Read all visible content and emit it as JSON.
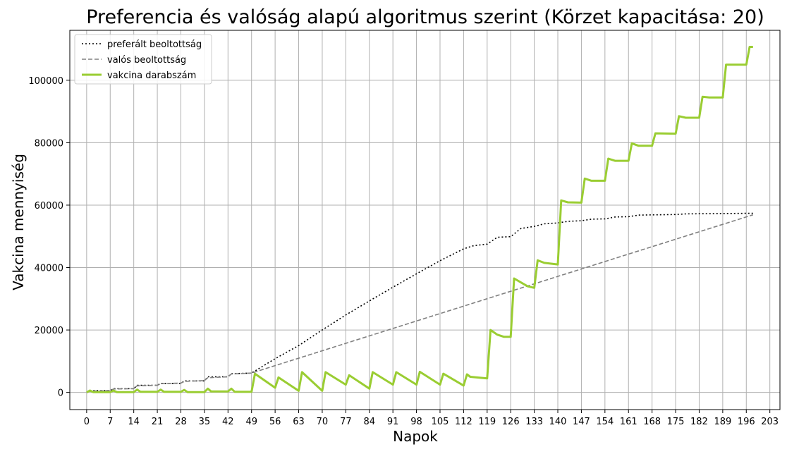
{
  "chart_data": {
    "type": "line",
    "title": "Preferencia és valóság alapú algoritmus szerint (Körzet kapacitása: 20)",
    "xlabel": "Napok",
    "ylabel": "Vakcina mennyiség",
    "xlim": [
      -5,
      206
    ],
    "ylim": [
      -5500,
      116000
    ],
    "x_ticks": [
      0,
      7,
      14,
      21,
      28,
      35,
      42,
      49,
      56,
      63,
      70,
      77,
      84,
      91,
      98,
      105,
      112,
      119,
      126,
      133,
      140,
      147,
      154,
      161,
      168,
      175,
      182,
      189,
      196,
      203
    ],
    "y_ticks": [
      0,
      20000,
      40000,
      60000,
      80000,
      100000
    ],
    "grid": true,
    "legend_position": "upper-left",
    "series": [
      {
        "name": "preferált beoltottság",
        "style": "dotted",
        "color": "#000000",
        "points": [
          [
            0,
            0
          ],
          [
            1,
            600
          ],
          [
            7,
            600
          ],
          [
            8,
            1200
          ],
          [
            14,
            1200
          ],
          [
            15,
            2300
          ],
          [
            21,
            2300
          ],
          [
            22,
            2900
          ],
          [
            28,
            2900
          ],
          [
            29,
            3700
          ],
          [
            35,
            3700
          ],
          [
            36,
            5000
          ],
          [
            42,
            5000
          ],
          [
            43,
            6000
          ],
          [
            49,
            6200
          ],
          [
            56,
            10800
          ],
          [
            63,
            15000
          ],
          [
            70,
            20000
          ],
          [
            77,
            24800
          ],
          [
            84,
            29300
          ],
          [
            91,
            33700
          ],
          [
            98,
            38000
          ],
          [
            105,
            42200
          ],
          [
            112,
            46000
          ],
          [
            115,
            47000
          ],
          [
            119,
            47500
          ],
          [
            122,
            49700
          ],
          [
            126,
            49900
          ],
          [
            129,
            52500
          ],
          [
            133,
            53200
          ],
          [
            136,
            54000
          ],
          [
            140,
            54300
          ],
          [
            143,
            54800
          ],
          [
            147,
            55000
          ],
          [
            150,
            55500
          ],
          [
            154,
            55600
          ],
          [
            157,
            56200
          ],
          [
            161,
            56300
          ],
          [
            164,
            56800
          ],
          [
            175,
            57000
          ],
          [
            178,
            57200
          ],
          [
            189,
            57300
          ],
          [
            198,
            57400
          ]
        ]
      },
      {
        "name": "valós beoltottság",
        "style": "dashed",
        "color": "#808080",
        "points": [
          [
            0,
            0
          ],
          [
            1,
            400
          ],
          [
            7,
            600
          ],
          [
            8,
            1100
          ],
          [
            14,
            1200
          ],
          [
            15,
            2100
          ],
          [
            21,
            2300
          ],
          [
            22,
            2800
          ],
          [
            28,
            3000
          ],
          [
            29,
            3500
          ],
          [
            35,
            3800
          ],
          [
            36,
            4700
          ],
          [
            42,
            5000
          ],
          [
            43,
            5900
          ],
          [
            49,
            6200
          ],
          [
            198,
            56900
          ]
        ]
      },
      {
        "name": "vakcina darabszám",
        "style": "solid",
        "color": "#9acd32",
        "points": [
          [
            0,
            0
          ],
          [
            1,
            600
          ],
          [
            2,
            100
          ],
          [
            7,
            100
          ],
          [
            8,
            600
          ],
          [
            9,
            100
          ],
          [
            14,
            100
          ],
          [
            15,
            900
          ],
          [
            16,
            200
          ],
          [
            21,
            200
          ],
          [
            22,
            900
          ],
          [
            23,
            200
          ],
          [
            28,
            200
          ],
          [
            29,
            800
          ],
          [
            30,
            100
          ],
          [
            35,
            100
          ],
          [
            36,
            1200
          ],
          [
            37,
            300
          ],
          [
            42,
            300
          ],
          [
            43,
            1200
          ],
          [
            44,
            200
          ],
          [
            49,
            200
          ],
          [
            50,
            6000
          ],
          [
            56,
            1500
          ],
          [
            57,
            4800
          ],
          [
            63,
            500
          ],
          [
            64,
            6500
          ],
          [
            70,
            500
          ],
          [
            71,
            6500
          ],
          [
            77,
            2500
          ],
          [
            78,
            5500
          ],
          [
            84,
            1200
          ],
          [
            85,
            6500
          ],
          [
            91,
            2500
          ],
          [
            92,
            6500
          ],
          [
            98,
            2500
          ],
          [
            99,
            6600
          ],
          [
            105,
            2500
          ],
          [
            106,
            6000
          ],
          [
            112,
            2200
          ],
          [
            113,
            5800
          ],
          [
            114,
            5000
          ],
          [
            119,
            4500
          ],
          [
            120,
            20000
          ],
          [
            122,
            18500
          ],
          [
            124,
            17800
          ],
          [
            126,
            17800
          ],
          [
            127,
            36500
          ],
          [
            131,
            34000
          ],
          [
            133,
            33500
          ],
          [
            134,
            42300
          ],
          [
            136,
            41500
          ],
          [
            140,
            41000
          ],
          [
            141,
            61500
          ],
          [
            143,
            60900
          ],
          [
            147,
            60800
          ],
          [
            148,
            68500
          ],
          [
            150,
            67800
          ],
          [
            154,
            67800
          ],
          [
            155,
            74900
          ],
          [
            157,
            74200
          ],
          [
            161,
            74200
          ],
          [
            162,
            79800
          ],
          [
            164,
            79000
          ],
          [
            168,
            79000
          ],
          [
            169,
            83000
          ],
          [
            175,
            82900
          ],
          [
            176,
            88500
          ],
          [
            178,
            88000
          ],
          [
            182,
            88000
          ],
          [
            183,
            94700
          ],
          [
            185,
            94500
          ],
          [
            189,
            94500
          ],
          [
            190,
            105000
          ],
          [
            196,
            105000
          ],
          [
            197,
            110700
          ],
          [
            198,
            110700
          ]
        ]
      }
    ]
  }
}
